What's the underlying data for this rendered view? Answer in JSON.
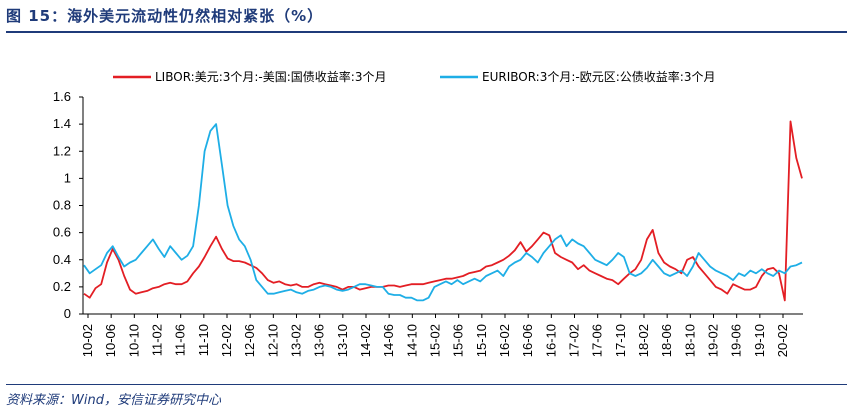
{
  "figure": {
    "title": "图 15：海外美元流动性仍然相对紧张（%）",
    "source": "资料来源：Wind，安信证券研究中心"
  },
  "chart_data": {
    "type": "line",
    "ylim": [
      0,
      1.6
    ],
    "y_ticks": [
      "0",
      "0.2",
      "0.4",
      "0.6",
      "0.8",
      "1",
      "1.2",
      "1.4",
      "1.6"
    ],
    "x_ticks": [
      "10-02",
      "10-06",
      "10-10",
      "11-02",
      "11-06",
      "11-10",
      "12-02",
      "12-06",
      "12-10",
      "13-02",
      "13-06",
      "13-10",
      "14-02",
      "14-06",
      "14-10",
      "15-02",
      "15-06",
      "15-10",
      "16-02",
      "16-06",
      "16-10",
      "17-02",
      "17-06",
      "17-10",
      "18-02",
      "18-06",
      "18-10",
      "19-02",
      "19-06",
      "19-10",
      "20-02"
    ],
    "legend_position": "top",
    "grid": false,
    "series": [
      {
        "name": "LIBOR:美元:3个月:-美国:国债收益率:3个月",
        "color": "#e31e24",
        "points": [
          [
            "10-01",
            0.15
          ],
          [
            "10-02",
            0.12
          ],
          [
            "10-03",
            0.19
          ],
          [
            "10-04",
            0.22
          ],
          [
            "10-05",
            0.38
          ],
          [
            "10-06",
            0.48
          ],
          [
            "10-07",
            0.4
          ],
          [
            "10-08",
            0.28
          ],
          [
            "10-09",
            0.18
          ],
          [
            "10-10",
            0.15
          ],
          [
            "10-11",
            0.16
          ],
          [
            "10-12",
            0.17
          ],
          [
            "11-01",
            0.19
          ],
          [
            "11-02",
            0.2
          ],
          [
            "11-03",
            0.22
          ],
          [
            "11-04",
            0.23
          ],
          [
            "11-05",
            0.22
          ],
          [
            "11-06",
            0.22
          ],
          [
            "11-07",
            0.24
          ],
          [
            "11-08",
            0.3
          ],
          [
            "11-09",
            0.35
          ],
          [
            "11-10",
            0.42
          ],
          [
            "11-11",
            0.5
          ],
          [
            "11-12",
            0.57
          ],
          [
            "12-01",
            0.48
          ],
          [
            "12-02",
            0.41
          ],
          [
            "12-03",
            0.39
          ],
          [
            "12-04",
            0.39
          ],
          [
            "12-05",
            0.38
          ],
          [
            "12-06",
            0.36
          ],
          [
            "12-07",
            0.34
          ],
          [
            "12-08",
            0.3
          ],
          [
            "12-09",
            0.25
          ],
          [
            "12-10",
            0.23
          ],
          [
            "12-11",
            0.24
          ],
          [
            "12-12",
            0.22
          ],
          [
            "13-01",
            0.21
          ],
          [
            "13-02",
            0.22
          ],
          [
            "13-03",
            0.2
          ],
          [
            "13-04",
            0.2
          ],
          [
            "13-05",
            0.22
          ],
          [
            "13-06",
            0.23
          ],
          [
            "13-07",
            0.22
          ],
          [
            "13-08",
            0.21
          ],
          [
            "13-09",
            0.2
          ],
          [
            "13-10",
            0.18
          ],
          [
            "13-11",
            0.2
          ],
          [
            "13-12",
            0.2
          ],
          [
            "14-01",
            0.18
          ],
          [
            "14-02",
            0.19
          ],
          [
            "14-03",
            0.2
          ],
          [
            "14-04",
            0.2
          ],
          [
            "14-05",
            0.2
          ],
          [
            "14-06",
            0.21
          ],
          [
            "14-07",
            0.21
          ],
          [
            "14-08",
            0.2
          ],
          [
            "14-09",
            0.21
          ],
          [
            "14-10",
            0.22
          ],
          [
            "14-11",
            0.22
          ],
          [
            "14-12",
            0.22
          ],
          [
            "15-01",
            0.23
          ],
          [
            "15-02",
            0.24
          ],
          [
            "15-03",
            0.25
          ],
          [
            "15-04",
            0.26
          ],
          [
            "15-05",
            0.26
          ],
          [
            "15-06",
            0.27
          ],
          [
            "15-07",
            0.28
          ],
          [
            "15-08",
            0.3
          ],
          [
            "15-09",
            0.31
          ],
          [
            "15-10",
            0.32
          ],
          [
            "15-11",
            0.35
          ],
          [
            "15-12",
            0.36
          ],
          [
            "16-01",
            0.38
          ],
          [
            "16-02",
            0.4
          ],
          [
            "16-03",
            0.43
          ],
          [
            "16-04",
            0.47
          ],
          [
            "16-05",
            0.53
          ],
          [
            "16-06",
            0.46
          ],
          [
            "16-07",
            0.5
          ],
          [
            "16-08",
            0.55
          ],
          [
            "16-09",
            0.6
          ],
          [
            "16-10",
            0.58
          ],
          [
            "16-11",
            0.45
          ],
          [
            "16-12",
            0.42
          ],
          [
            "17-01",
            0.4
          ],
          [
            "17-02",
            0.38
          ],
          [
            "17-03",
            0.33
          ],
          [
            "17-04",
            0.36
          ],
          [
            "17-05",
            0.32
          ],
          [
            "17-06",
            0.3
          ],
          [
            "17-07",
            0.28
          ],
          [
            "17-08",
            0.26
          ],
          [
            "17-09",
            0.25
          ],
          [
            "17-10",
            0.22
          ],
          [
            "17-11",
            0.26
          ],
          [
            "17-12",
            0.3
          ],
          [
            "18-01",
            0.33
          ],
          [
            "18-02",
            0.4
          ],
          [
            "18-03",
            0.55
          ],
          [
            "18-04",
            0.62
          ],
          [
            "18-05",
            0.45
          ],
          [
            "18-06",
            0.38
          ],
          [
            "18-07",
            0.35
          ],
          [
            "18-08",
            0.33
          ],
          [
            "18-09",
            0.3
          ],
          [
            "18-10",
            0.4
          ],
          [
            "18-11",
            0.42
          ],
          [
            "18-12",
            0.35
          ],
          [
            "19-01",
            0.3
          ],
          [
            "19-02",
            0.25
          ],
          [
            "19-03",
            0.2
          ],
          [
            "19-04",
            0.18
          ],
          [
            "19-05",
            0.15
          ],
          [
            "19-06",
            0.22
          ],
          [
            "19-07",
            0.2
          ],
          [
            "19-08",
            0.18
          ],
          [
            "19-09",
            0.18
          ],
          [
            "19-10",
            0.2
          ],
          [
            "19-11",
            0.28
          ],
          [
            "19-12",
            0.33
          ],
          [
            "20-01",
            0.34
          ],
          [
            "20-02",
            0.3
          ],
          [
            "20-03a",
            0.1
          ],
          [
            "20-03b",
            1.42
          ],
          [
            "20-03c",
            1.15
          ],
          [
            "20-03d",
            1.0
          ]
        ]
      },
      {
        "name": "EURIBOR:3个月:-欧元区:公债收益率:3个月",
        "color": "#1eaee6",
        "points": [
          [
            "10-01",
            0.36
          ],
          [
            "10-02",
            0.3
          ],
          [
            "10-03",
            0.33
          ],
          [
            "10-04",
            0.36
          ],
          [
            "10-05",
            0.45
          ],
          [
            "10-06",
            0.5
          ],
          [
            "10-07",
            0.42
          ],
          [
            "10-08",
            0.35
          ],
          [
            "10-09",
            0.38
          ],
          [
            "10-10",
            0.4
          ],
          [
            "10-11",
            0.45
          ],
          [
            "10-12",
            0.5
          ],
          [
            "11-01",
            0.55
          ],
          [
            "11-02",
            0.48
          ],
          [
            "11-03",
            0.42
          ],
          [
            "11-04",
            0.5
          ],
          [
            "11-05",
            0.45
          ],
          [
            "11-06",
            0.4
          ],
          [
            "11-07",
            0.43
          ],
          [
            "11-08",
            0.5
          ],
          [
            "11-09",
            0.8
          ],
          [
            "11-10",
            1.2
          ],
          [
            "11-11",
            1.35
          ],
          [
            "11-12",
            1.4
          ],
          [
            "12-01",
            1.1
          ],
          [
            "12-02",
            0.8
          ],
          [
            "12-03",
            0.65
          ],
          [
            "12-04",
            0.55
          ],
          [
            "12-05",
            0.5
          ],
          [
            "12-06",
            0.4
          ],
          [
            "12-07",
            0.25
          ],
          [
            "12-08",
            0.2
          ],
          [
            "12-09",
            0.15
          ],
          [
            "12-10",
            0.15
          ],
          [
            "12-11",
            0.16
          ],
          [
            "12-12",
            0.17
          ],
          [
            "13-01",
            0.18
          ],
          [
            "13-02",
            0.16
          ],
          [
            "13-03",
            0.15
          ],
          [
            "13-04",
            0.17
          ],
          [
            "13-05",
            0.18
          ],
          [
            "13-06",
            0.2
          ],
          [
            "13-07",
            0.21
          ],
          [
            "13-08",
            0.2
          ],
          [
            "13-09",
            0.18
          ],
          [
            "13-10",
            0.17
          ],
          [
            "13-11",
            0.18
          ],
          [
            "13-12",
            0.2
          ],
          [
            "14-01",
            0.22
          ],
          [
            "14-02",
            0.22
          ],
          [
            "14-03",
            0.21
          ],
          [
            "14-04",
            0.2
          ],
          [
            "14-05",
            0.2
          ],
          [
            "14-06",
            0.15
          ],
          [
            "14-07",
            0.14
          ],
          [
            "14-08",
            0.14
          ],
          [
            "14-09",
            0.12
          ],
          [
            "14-10",
            0.12
          ],
          [
            "14-11",
            0.1
          ],
          [
            "14-12",
            0.1
          ],
          [
            "15-01",
            0.12
          ],
          [
            "15-02",
            0.2
          ],
          [
            "15-03",
            0.22
          ],
          [
            "15-04",
            0.24
          ],
          [
            "15-05",
            0.22
          ],
          [
            "15-06",
            0.25
          ],
          [
            "15-07",
            0.22
          ],
          [
            "15-08",
            0.24
          ],
          [
            "15-09",
            0.26
          ],
          [
            "15-10",
            0.24
          ],
          [
            "15-11",
            0.28
          ],
          [
            "15-12",
            0.3
          ],
          [
            "16-01",
            0.32
          ],
          [
            "16-02",
            0.28
          ],
          [
            "16-03",
            0.35
          ],
          [
            "16-04",
            0.38
          ],
          [
            "16-05",
            0.4
          ],
          [
            "16-06",
            0.45
          ],
          [
            "16-07",
            0.42
          ],
          [
            "16-08",
            0.38
          ],
          [
            "16-09",
            0.45
          ],
          [
            "16-10",
            0.5
          ],
          [
            "16-11",
            0.55
          ],
          [
            "16-12",
            0.58
          ],
          [
            "17-01",
            0.5
          ],
          [
            "17-02",
            0.55
          ],
          [
            "17-03",
            0.52
          ],
          [
            "17-04",
            0.5
          ],
          [
            "17-05",
            0.45
          ],
          [
            "17-06",
            0.4
          ],
          [
            "17-07",
            0.38
          ],
          [
            "17-08",
            0.36
          ],
          [
            "17-09",
            0.4
          ],
          [
            "17-10",
            0.45
          ],
          [
            "17-11",
            0.42
          ],
          [
            "17-12",
            0.3
          ],
          [
            "18-01",
            0.28
          ],
          [
            "18-02",
            0.3
          ],
          [
            "18-03",
            0.34
          ],
          [
            "18-04",
            0.4
          ],
          [
            "18-05",
            0.35
          ],
          [
            "18-06",
            0.3
          ],
          [
            "18-07",
            0.28
          ],
          [
            "18-08",
            0.3
          ],
          [
            "18-09",
            0.32
          ],
          [
            "18-10",
            0.28
          ],
          [
            "18-11",
            0.35
          ],
          [
            "18-12",
            0.45
          ],
          [
            "19-01",
            0.4
          ],
          [
            "19-02",
            0.35
          ],
          [
            "19-03",
            0.32
          ],
          [
            "19-04",
            0.3
          ],
          [
            "19-05",
            0.28
          ],
          [
            "19-06",
            0.25
          ],
          [
            "19-07",
            0.3
          ],
          [
            "19-08",
            0.28
          ],
          [
            "19-09",
            0.32
          ],
          [
            "19-10",
            0.3
          ],
          [
            "19-11",
            0.33
          ],
          [
            "19-12",
            0.3
          ],
          [
            "20-01",
            0.28
          ],
          [
            "20-02",
            0.32
          ],
          [
            "20-03a",
            0.3
          ],
          [
            "20-03b",
            0.35
          ],
          [
            "20-03c",
            0.36
          ],
          [
            "20-03d",
            0.38
          ]
        ]
      }
    ]
  }
}
